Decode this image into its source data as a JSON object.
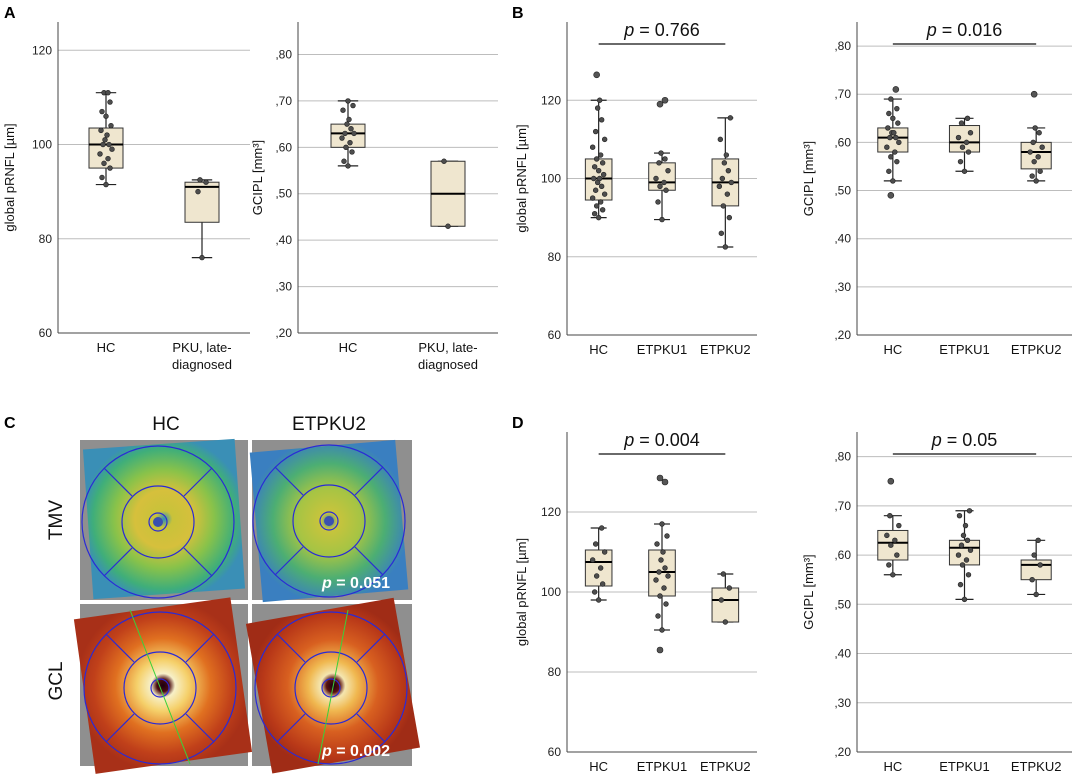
{
  "panels": {
    "A": "A",
    "B": "B",
    "C": "C",
    "D": "D"
  },
  "chart_data": [
    {
      "id": "A1",
      "type": "boxplot",
      "ylabel": "global pRNFL [µm]",
      "ylim": [
        60,
        126
      ],
      "yticks": [
        60,
        80,
        100,
        120
      ],
      "ytick_labels": [
        "60",
        "80",
        "100",
        "120"
      ],
      "categories": [
        "HC",
        "PKU, late-diagnosed"
      ],
      "category_lines": [
        [
          "HC"
        ],
        [
          "PKU, late-",
          "diagnosed"
        ]
      ],
      "boxes": [
        {
          "q1": 95,
          "median": 100,
          "q3": 103.5,
          "whisker_low": 91.5,
          "whisker_high": 111,
          "points": [
            91.5,
            93,
            95,
            96,
            97,
            98,
            99,
            100,
            100,
            101,
            102,
            103,
            104,
            106,
            107,
            109,
            111,
            111
          ]
        },
        {
          "q1": 83.5,
          "median": 91,
          "q3": 92,
          "whisker_low": 76,
          "whisker_high": 92.5,
          "points": [
            76,
            90,
            92,
            92.5
          ]
        }
      ],
      "outliers": [
        [],
        []
      ]
    },
    {
      "id": "A2",
      "type": "boxplot",
      "ylabel": "GCIPL [mm³]",
      "ylim": [
        0.2,
        0.87
      ],
      "yticks": [
        0.2,
        0.3,
        0.4,
        0.5,
        0.6,
        0.7,
        0.8
      ],
      "ytick_labels": [
        ",20",
        ",30",
        ",40",
        ",50",
        ",60",
        ",70",
        ",80"
      ],
      "categories": [
        "HC",
        "PKU, late-diagnosed"
      ],
      "category_lines": [
        [
          "HC"
        ],
        [
          "PKU, late-",
          "diagnosed"
        ]
      ],
      "boxes": [
        {
          "q1": 0.6,
          "median": 0.63,
          "q3": 0.65,
          "whisker_low": 0.56,
          "whisker_high": 0.7,
          "points": [
            0.56,
            0.57,
            0.59,
            0.6,
            0.61,
            0.62,
            0.63,
            0.63,
            0.64,
            0.65,
            0.66,
            0.68,
            0.69,
            0.7
          ]
        },
        {
          "q1": 0.43,
          "median": 0.5,
          "q3": 0.57,
          "whisker_low": 0.43,
          "whisker_high": 0.57,
          "points": [
            0.43,
            0.57
          ]
        }
      ],
      "outliers": [
        [],
        []
      ]
    },
    {
      "id": "B1",
      "type": "boxplot",
      "ylabel": "global pRNFL [µm]",
      "ylim": [
        60,
        140
      ],
      "yticks": [
        60,
        80,
        100,
        120
      ],
      "ytick_labels": [
        "60",
        "80",
        "100",
        "120"
      ],
      "categories": [
        "HC",
        "ETPKU1",
        "ETPKU2"
      ],
      "category_lines": [
        [
          "HC"
        ],
        [
          "ETPKU1"
        ],
        [
          "ETPKU2"
        ]
      ],
      "p_label": "p",
      "p_value": " = 0.766",
      "boxes": [
        {
          "q1": 94.5,
          "median": 100,
          "q3": 105,
          "whisker_low": 90,
          "whisker_high": 120,
          "points": [
            90,
            91,
            92,
            93,
            94,
            95,
            96,
            97,
            98,
            99,
            100,
            100,
            101,
            102,
            103,
            104,
            105,
            106,
            108,
            110,
            112,
            115,
            118,
            120
          ]
        },
        {
          "q1": 97,
          "median": 99,
          "q3": 104,
          "whisker_low": 89.5,
          "whisker_high": 106.5,
          "points": [
            89.5,
            94,
            97,
            98,
            99,
            100,
            102,
            104,
            105,
            106.5
          ]
        },
        {
          "q1": 93,
          "median": 99,
          "q3": 105,
          "whisker_low": 82.5,
          "whisker_high": 115.5,
          "points": [
            82.5,
            86,
            90,
            93,
            96,
            98,
            99,
            100,
            102,
            104,
            106,
            110,
            115.5
          ]
        }
      ],
      "outliers": [
        [
          126.5
        ],
        [
          119,
          120
        ],
        []
      ]
    },
    {
      "id": "B2",
      "type": "boxplot",
      "ylabel": "GCIPL [mm³]",
      "ylim": [
        0.2,
        0.85
      ],
      "yticks": [
        0.2,
        0.3,
        0.4,
        0.5,
        0.6,
        0.7,
        0.8
      ],
      "ytick_labels": [
        ",20",
        ",30",
        ",40",
        ",50",
        ",60",
        ",70",
        ",80"
      ],
      "categories": [
        "HC",
        "ETPKU1",
        "ETPKU2"
      ],
      "category_lines": [
        [
          "HC"
        ],
        [
          "ETPKU1"
        ],
        [
          "ETPKU2"
        ]
      ],
      "p_label": "p",
      "p_value": " = 0.016",
      "boxes": [
        {
          "q1": 0.58,
          "median": 0.61,
          "q3": 0.63,
          "whisker_low": 0.52,
          "whisker_high": 0.69,
          "points": [
            0.52,
            0.54,
            0.56,
            0.57,
            0.58,
            0.59,
            0.6,
            0.61,
            0.61,
            0.62,
            0.62,
            0.63,
            0.64,
            0.65,
            0.66,
            0.67,
            0.69
          ]
        },
        {
          "q1": 0.58,
          "median": 0.6,
          "q3": 0.635,
          "whisker_low": 0.54,
          "whisker_high": 0.65,
          "points": [
            0.54,
            0.56,
            0.58,
            0.59,
            0.6,
            0.61,
            0.62,
            0.64,
            0.65
          ]
        },
        {
          "q1": 0.545,
          "median": 0.58,
          "q3": 0.6,
          "whisker_low": 0.52,
          "whisker_high": 0.63,
          "points": [
            0.52,
            0.53,
            0.54,
            0.56,
            0.57,
            0.58,
            0.59,
            0.6,
            0.62,
            0.63
          ]
        }
      ],
      "outliers": [
        [
          0.49,
          0.71
        ],
        [],
        [
          0.7
        ]
      ]
    },
    {
      "id": "D1",
      "type": "boxplot",
      "ylabel": "global pRNFL [µm]",
      "ylim": [
        60,
        140
      ],
      "yticks": [
        60,
        80,
        100,
        120
      ],
      "ytick_labels": [
        "60",
        "80",
        "100",
        "120"
      ],
      "categories": [
        "HC",
        "ETPKU1",
        "ETPKU2"
      ],
      "category_lines": [
        [
          "HC"
        ],
        [
          "ETPKU1"
        ],
        [
          "ETPKU2"
        ]
      ],
      "p_label": "p",
      "p_value": " = 0.004",
      "boxes": [
        {
          "q1": 101.5,
          "median": 107.5,
          "q3": 110.5,
          "whisker_low": 98,
          "whisker_high": 116,
          "points": [
            98,
            100,
            102,
            104,
            106,
            108,
            110,
            112,
            116
          ]
        },
        {
          "q1": 99,
          "median": 105,
          "q3": 110.5,
          "whisker_low": 90.5,
          "whisker_high": 117,
          "points": [
            90.5,
            94,
            97,
            99,
            101,
            103,
            104,
            105,
            106,
            108,
            110,
            112,
            114,
            117
          ]
        },
        {
          "q1": 92.5,
          "median": 98,
          "q3": 101,
          "whisker_low": 92.5,
          "whisker_high": 104.5,
          "points": [
            92.5,
            98,
            101,
            104.5
          ]
        }
      ],
      "outliers": [
        [],
        [
          85.5,
          127.5,
          128.5
        ],
        []
      ]
    },
    {
      "id": "D2",
      "type": "boxplot",
      "ylabel": "GCIPL [mm³]",
      "ylim": [
        0.2,
        0.85
      ],
      "yticks": [
        0.2,
        0.3,
        0.4,
        0.5,
        0.6,
        0.7,
        0.8
      ],
      "ytick_labels": [
        ",20",
        ",30",
        ",40",
        ",50",
        ",60",
        ",70",
        ",80"
      ],
      "categories": [
        "HC",
        "ETPKU1",
        "ETPKU2"
      ],
      "category_lines": [
        [
          "HC"
        ],
        [
          "ETPKU1"
        ],
        [
          "ETPKU2"
        ]
      ],
      "p_label": "p",
      "p_value": " = 0.05",
      "boxes": [
        {
          "q1": 0.59,
          "median": 0.625,
          "q3": 0.65,
          "whisker_low": 0.56,
          "whisker_high": 0.68,
          "points": [
            0.56,
            0.58,
            0.6,
            0.62,
            0.63,
            0.64,
            0.66,
            0.68
          ]
        },
        {
          "q1": 0.58,
          "median": 0.615,
          "q3": 0.63,
          "whisker_low": 0.51,
          "whisker_high": 0.69,
          "points": [
            0.51,
            0.54,
            0.56,
            0.58,
            0.59,
            0.6,
            0.61,
            0.62,
            0.63,
            0.64,
            0.66,
            0.68,
            0.69
          ]
        },
        {
          "q1": 0.55,
          "median": 0.58,
          "q3": 0.59,
          "whisker_low": 0.52,
          "whisker_high": 0.63,
          "points": [
            0.52,
            0.55,
            0.58,
            0.6,
            0.63
          ]
        }
      ],
      "outliers": [
        [
          0.75
        ],
        [],
        []
      ]
    }
  ],
  "maps": {
    "col_labels": [
      "HC",
      "ETPKU2"
    ],
    "row_labels": [
      "TMV",
      "GCL"
    ],
    "p_label": "p",
    "tmv_p": " = 0.051",
    "gcl_p": " = 0.002"
  }
}
